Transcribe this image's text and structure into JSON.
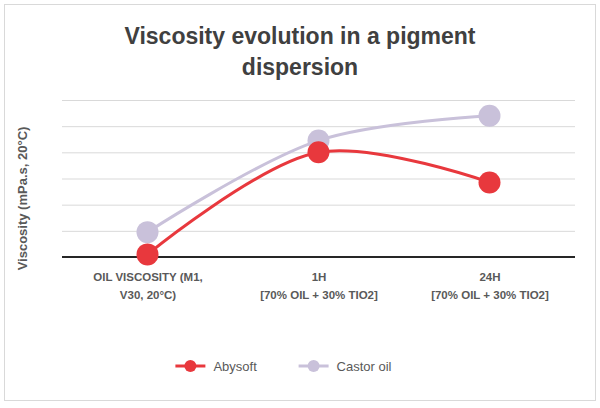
{
  "chart_data": {
    "type": "line",
    "title": "Viscosity evolution in a pigment\ndispersion",
    "y_label": "Viscosity (mPa.s, 20°C)",
    "categories": [
      "OIL VISCOSITY (M1,\nV30, 20°C)",
      "1H\n[70% OIL + 30% TIO2]",
      "24H\n[70% OIL + 30% TIO2]"
    ],
    "series": [
      {
        "name": "Abysoft",
        "color": "#e8383d",
        "values": [
          0.1,
          4.0,
          2.85
        ]
      },
      {
        "name": "Castor oil",
        "color": "#c9c1da",
        "values": [
          0.95,
          4.45,
          5.4
        ]
      }
    ],
    "ylim": [
      0,
      6
    ],
    "yticks": [
      0,
      1,
      2,
      3,
      4,
      5,
      6
    ],
    "grid": true,
    "legend": "bottom",
    "tick_labels": "x",
    "marker": "circle",
    "line_style": "smooth"
  }
}
